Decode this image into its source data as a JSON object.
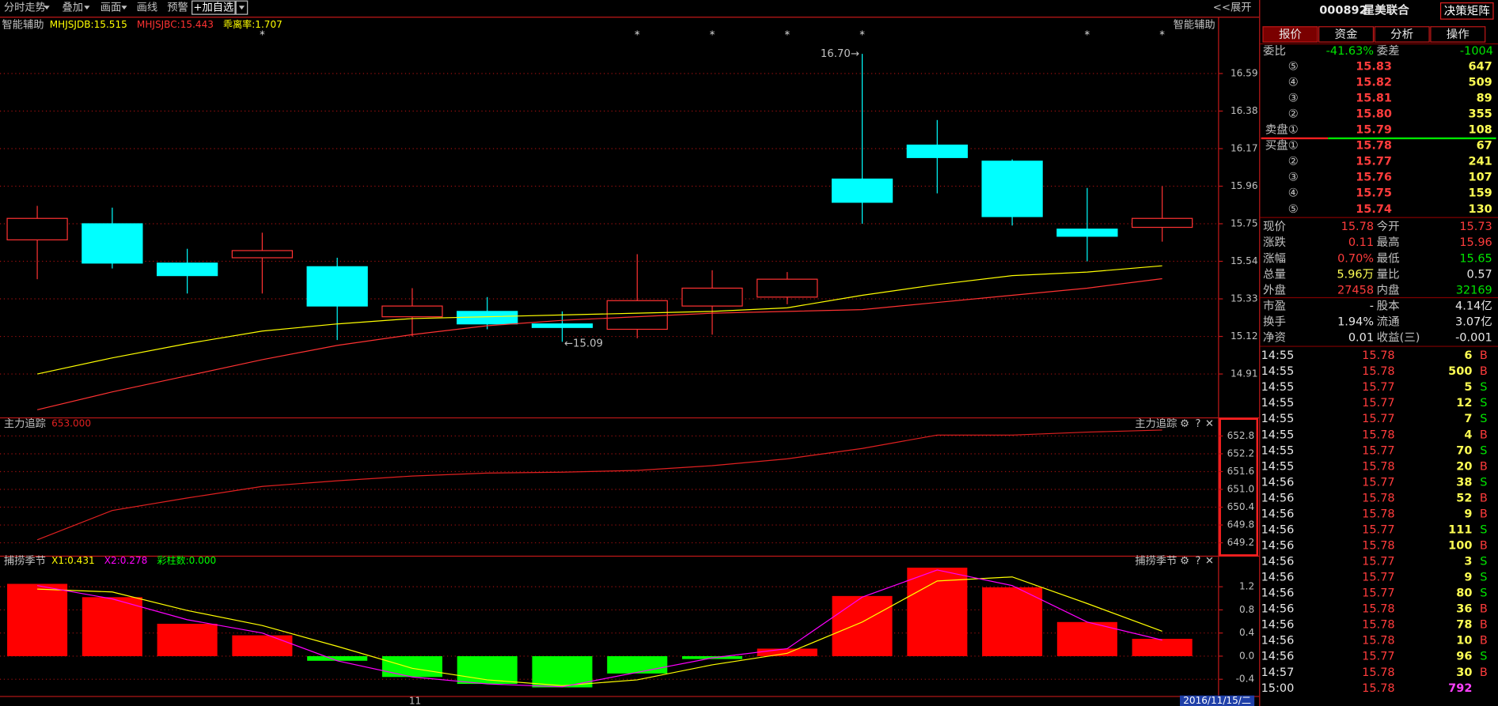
{
  "toolbar": {
    "items": [
      "分时走势",
      "叠加",
      "画面",
      "画线",
      "预警"
    ],
    "add_button": "+加自选",
    "expand": "<<展开"
  },
  "chart_data": [
    {
      "type": "candlestick",
      "title": "智能辅助",
      "series": [
        {
          "name": "MHJSJDB:15.515",
          "color": "#ffff00",
          "values": [
            14.91,
            15.0,
            15.08,
            15.15,
            15.19,
            15.22,
            15.23,
            15.24,
            15.25,
            15.26,
            15.28,
            15.35,
            15.41,
            15.46,
            15.48,
            15.515
          ]
        },
        {
          "name": "MHJSJBC:15.443",
          "color": "#ff3232",
          "values": [
            14.71,
            14.81,
            14.9,
            14.99,
            15.07,
            15.13,
            15.18,
            15.21,
            15.23,
            15.25,
            15.26,
            15.27,
            15.31,
            15.35,
            15.39,
            15.443
          ]
        }
      ],
      "legend_extra": {
        "text": "乖离率:1.707",
        "color": "#ffff00"
      },
      "open": [
        15.66,
        15.75,
        15.53,
        15.56,
        15.51,
        15.23,
        15.26,
        15.19,
        15.16,
        15.29,
        15.34,
        16.0,
        16.19,
        16.1,
        15.72,
        15.73
      ],
      "high": [
        15.85,
        15.84,
        15.61,
        15.7,
        15.56,
        15.39,
        15.34,
        15.26,
        15.58,
        15.49,
        15.48,
        16.7,
        16.33,
        16.11,
        15.95,
        15.96
      ],
      "low": [
        15.44,
        15.5,
        15.36,
        15.36,
        15.1,
        15.12,
        15.16,
        15.09,
        15.11,
        15.13,
        15.3,
        15.75,
        15.92,
        15.74,
        15.54,
        15.65
      ],
      "close": [
        15.78,
        15.53,
        15.46,
        15.6,
        15.29,
        15.29,
        15.19,
        15.17,
        15.32,
        15.39,
        15.44,
        15.87,
        16.12,
        15.79,
        15.68,
        15.78
      ],
      "up_color": "#ff3232",
      "down_color": "#00ffff",
      "categories": [
        null,
        null,
        null,
        null,
        null,
        "11",
        null,
        null,
        null,
        null,
        null,
        null,
        null,
        null,
        null,
        null
      ],
      "ylim": [
        14.67,
        16.905
      ],
      "yticks": [
        16.59,
        16.38,
        16.17,
        15.96,
        15.75,
        15.54,
        15.33,
        15.12,
        14.91
      ],
      "grid": true,
      "marker": "*",
      "marked": [
        false,
        false,
        false,
        true,
        false,
        false,
        false,
        false,
        true,
        true,
        true,
        true,
        false,
        false,
        true,
        true
      ],
      "high_label": "16.70→",
      "low_label": "←15.09"
    },
    {
      "type": "line",
      "title": "主力追踪",
      "series": [
        {
          "name": "653.000",
          "color": "#e02020",
          "values": [
            649.3,
            650.29,
            650.71,
            651.1,
            651.29,
            651.45,
            651.55,
            651.58,
            651.64,
            651.8,
            652.03,
            652.38,
            652.83,
            652.83,
            652.93,
            653.0
          ]
        }
      ],
      "ylim": [
        648.78,
        653.41
      ],
      "yticks": [
        652.8,
        652.2,
        651.6,
        {
          "value": 651,
          "label": "651.0"
        },
        650.4,
        649.8,
        649.2
      ],
      "grid": true
    },
    {
      "type": "bar",
      "title": "捕捞季节",
      "values": [
        1.25,
        1.02,
        0.56,
        0.36,
        -0.08,
        -0.36,
        -0.48,
        -0.54,
        -0.3,
        -0.05,
        0.13,
        1.04,
        1.53,
        1.19,
        0.59,
        0.3
      ],
      "up_color": "#ff0000",
      "down_color": "#00ff00",
      "series": [
        {
          "name": "X1:0.431",
          "color": "#ffff00",
          "values": [
            1.16,
            1.11,
            0.79,
            0.53,
            0.17,
            -0.21,
            -0.41,
            -0.51,
            -0.41,
            -0.15,
            0.05,
            0.59,
            1.3,
            1.37,
            0.91,
            0.431
          ]
        },
        {
          "name": "X2:0.278",
          "color": "#ff00ff",
          "values": [
            1.22,
            0.99,
            0.63,
            0.4,
            -0.08,
            -0.36,
            -0.48,
            -0.53,
            -0.28,
            -0.03,
            0.13,
            1.02,
            1.49,
            1.22,
            0.59,
            0.278
          ]
        }
      ],
      "legend_extra": {
        "text": "彩柱数:0.000",
        "color": "#00ff00"
      },
      "ylim": [
        -0.697,
        1.728
      ],
      "yticks": [
        1.2,
        0.8,
        0.4,
        {
          "value": 0,
          "label": "0.0"
        },
        -0.4
      ],
      "grid": true
    }
  ],
  "footer": {
    "date": "2016/11/15/二"
  },
  "quote": {
    "code": "000892",
    "name": "星美联合",
    "button": "决策矩阵",
    "tabs": [
      "报价",
      "资金",
      "分析",
      "操作"
    ],
    "commission": [
      "委比",
      "-41.63%",
      "委差",
      "-1004"
    ],
    "asks": [
      [
        "⑤",
        "15.83",
        "647"
      ],
      [
        "④",
        "15.82",
        "509"
      ],
      [
        "③",
        "15.81",
        "89"
      ],
      [
        "②",
        "15.80",
        "355"
      ],
      [
        "卖盘①",
        "15.79",
        "108"
      ]
    ],
    "bids": [
      [
        "买盘①",
        "15.78",
        "67"
      ],
      [
        "②",
        "15.77",
        "241"
      ],
      [
        "③",
        "15.76",
        "107"
      ],
      [
        "④",
        "15.75",
        "159"
      ],
      [
        "⑤",
        "15.74",
        "130"
      ]
    ],
    "stats": [
      [
        "现价",
        "15.78",
        "今开",
        "15.73"
      ],
      [
        "涨跌",
        "0.11",
        "最高",
        "15.96"
      ],
      [
        "涨幅",
        "0.70%",
        "最低",
        "15.65"
      ],
      [
        "总量",
        "5.96万",
        "量比",
        "0.57"
      ],
      [
        "外盘",
        "27458",
        "内盘",
        "32169"
      ]
    ],
    "fundamentals": [
      [
        "市盈",
        "-",
        "股本",
        "4.14亿"
      ],
      [
        "换手",
        "1.94%",
        "流通",
        "3.07亿"
      ],
      [
        "净资",
        "0.01",
        "收益(三)",
        "-0.001"
      ]
    ],
    "trades": [
      [
        "14:55",
        "15.78",
        "6",
        "B"
      ],
      [
        "14:55",
        "15.78",
        "500",
        "B"
      ],
      [
        "14:55",
        "15.77",
        "5",
        "S"
      ],
      [
        "14:55",
        "15.77",
        "12",
        "S"
      ],
      [
        "14:55",
        "15.77",
        "7",
        "S"
      ],
      [
        "14:55",
        "15.78",
        "4",
        "B"
      ],
      [
        "14:55",
        "15.77",
        "70",
        "S"
      ],
      [
        "14:55",
        "15.78",
        "20",
        "B"
      ],
      [
        "14:56",
        "15.77",
        "38",
        "S"
      ],
      [
        "14:56",
        "15.78",
        "52",
        "B"
      ],
      [
        "14:56",
        "15.78",
        "9",
        "B"
      ],
      [
        "14:56",
        "15.77",
        "111",
        "S"
      ],
      [
        "14:56",
        "15.78",
        "100",
        "B"
      ],
      [
        "14:56",
        "15.77",
        "3",
        "S"
      ],
      [
        "14:56",
        "15.77",
        "9",
        "S"
      ],
      [
        "14:56",
        "15.77",
        "80",
        "S"
      ],
      [
        "14:56",
        "15.78",
        "36",
        "B"
      ],
      [
        "14:56",
        "15.78",
        "78",
        "B"
      ],
      [
        "14:56",
        "15.78",
        "10",
        "B"
      ],
      [
        "14:56",
        "15.77",
        "96",
        "S"
      ],
      [
        "14:57",
        "15.78",
        "30",
        "B"
      ],
      [
        "15:00",
        "15.78",
        "792"
      ]
    ]
  }
}
